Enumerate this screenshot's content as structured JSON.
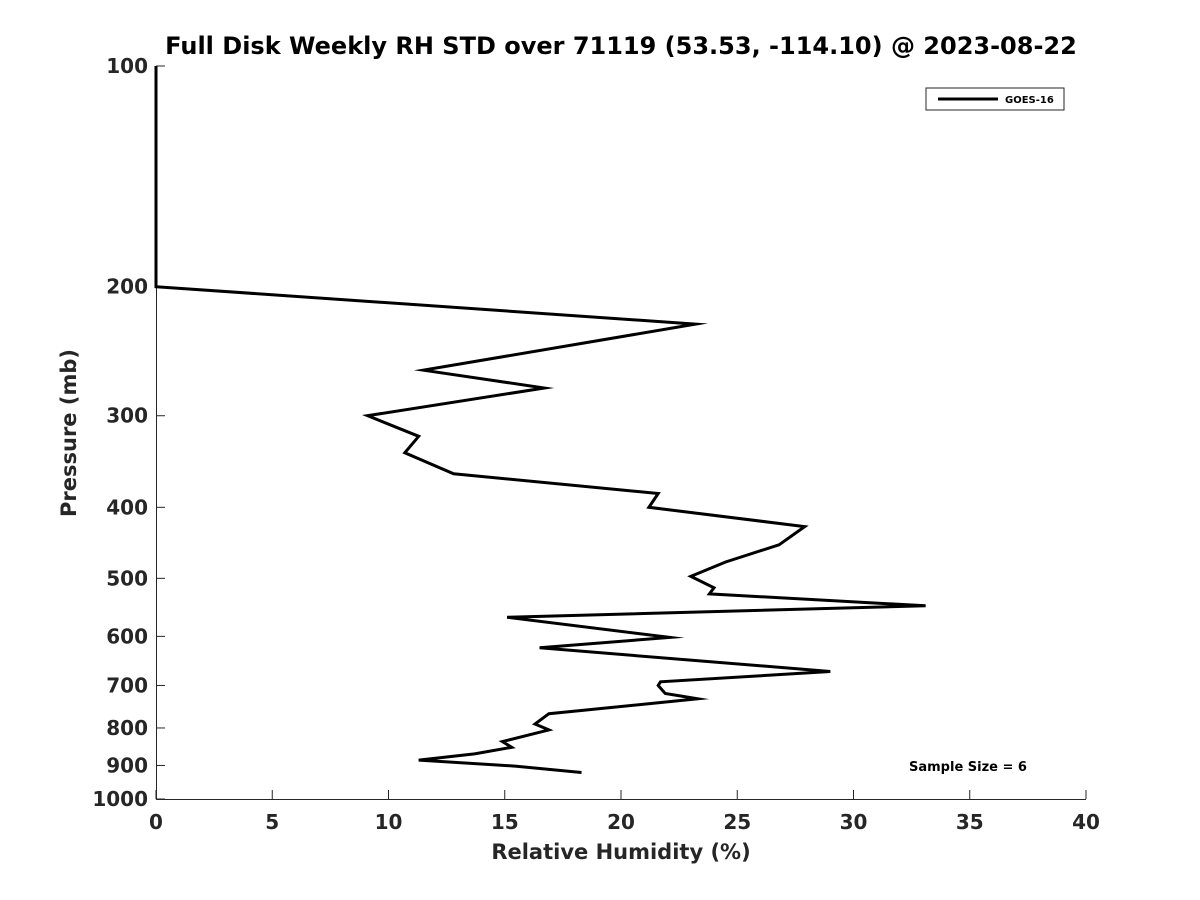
{
  "colors": {
    "background": "#ffffff",
    "line": "#000000",
    "axis": "#262626"
  },
  "chart_data": {
    "type": "line",
    "title": "Full Disk Weekly RH STD over 71119 (53.53, -114.10) @ 2023-08-22",
    "xlabel": "Relative Humidity (%)",
    "ylabel": "Pressure (mb)",
    "xlim": [
      0,
      40
    ],
    "ylim": [
      100,
      1000
    ],
    "yscale": "log",
    "yaxis_inverted": true,
    "xticks": [
      0,
      5,
      10,
      15,
      20,
      25,
      30,
      35,
      40
    ],
    "yticks": [
      100,
      200,
      300,
      400,
      500,
      600,
      700,
      800,
      900,
      1000
    ],
    "grid": false,
    "legend_position": "top-right",
    "annotation": "Sample Size = 6",
    "series": [
      {
        "name": "GOES-16",
        "color": "#000000",
        "points": [
          {
            "x": 0,
            "y": 100
          },
          {
            "x": 0,
            "y": 200
          },
          {
            "x": 23.2,
            "y": 225
          },
          {
            "x": 11.5,
            "y": 260
          },
          {
            "x": 16.7,
            "y": 275
          },
          {
            "x": 9.1,
            "y": 300
          },
          {
            "x": 11.3,
            "y": 320
          },
          {
            "x": 10.7,
            "y": 337
          },
          {
            "x": 12.8,
            "y": 360
          },
          {
            "x": 21.6,
            "y": 383
          },
          {
            "x": 21.2,
            "y": 400
          },
          {
            "x": 27.9,
            "y": 425
          },
          {
            "x": 26.8,
            "y": 450
          },
          {
            "x": 24.5,
            "y": 475
          },
          {
            "x": 23.0,
            "y": 497
          },
          {
            "x": 24.0,
            "y": 515
          },
          {
            "x": 23.8,
            "y": 525
          },
          {
            "x": 33.1,
            "y": 545
          },
          {
            "x": 15.1,
            "y": 565
          },
          {
            "x": 22.1,
            "y": 602
          },
          {
            "x": 16.5,
            "y": 622
          },
          {
            "x": 29.0,
            "y": 670
          },
          {
            "x": 21.7,
            "y": 692
          },
          {
            "x": 21.6,
            "y": 700
          },
          {
            "x": 21.9,
            "y": 718
          },
          {
            "x": 23.3,
            "y": 730
          },
          {
            "x": 16.9,
            "y": 765
          },
          {
            "x": 16.3,
            "y": 790
          },
          {
            "x": 16.9,
            "y": 805
          },
          {
            "x": 14.9,
            "y": 835
          },
          {
            "x": 15.3,
            "y": 850
          },
          {
            "x": 13.7,
            "y": 868
          },
          {
            "x": 11.3,
            "y": 885
          },
          {
            "x": 15.5,
            "y": 902
          },
          {
            "x": 18.3,
            "y": 920
          }
        ]
      }
    ]
  }
}
